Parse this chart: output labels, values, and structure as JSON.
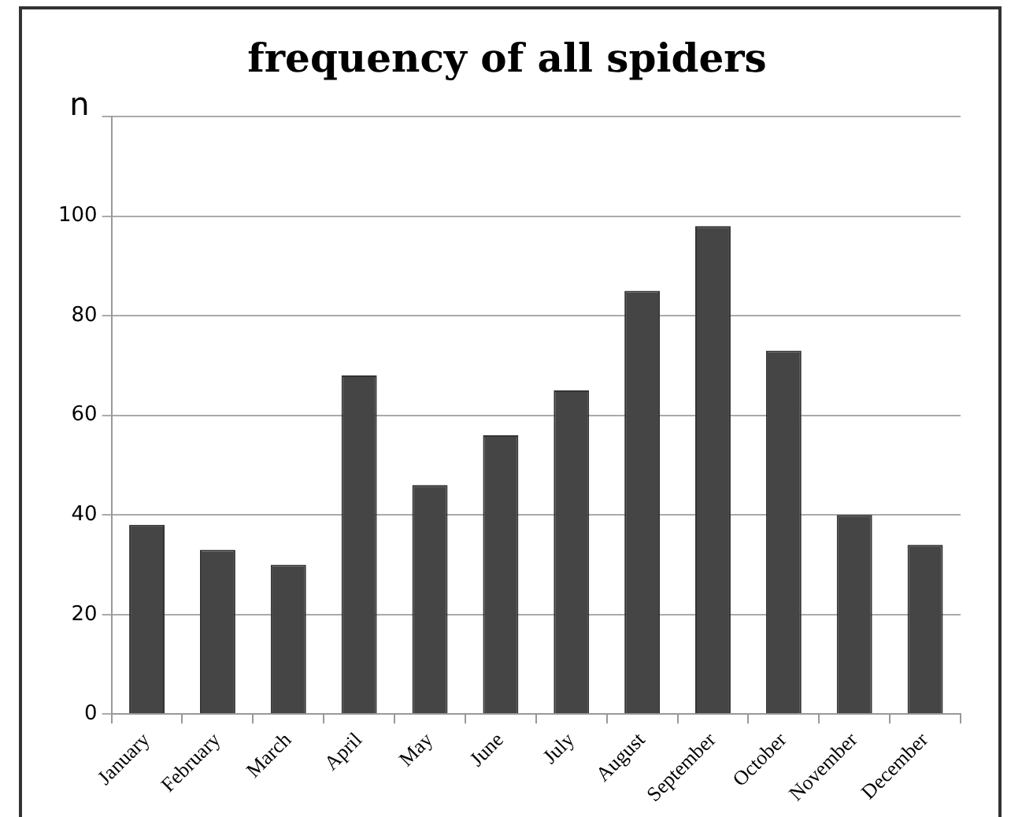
{
  "chart_data": {
    "type": "bar",
    "title": "frequency of all spiders",
    "ylabel": "n",
    "categories": [
      "January",
      "February",
      "March",
      "April",
      "May",
      "June",
      "July",
      "August",
      "September",
      "October",
      "November",
      "December"
    ],
    "values": [
      38,
      33,
      30,
      68,
      46,
      56,
      65,
      85,
      98,
      73,
      40,
      34
    ],
    "color": "#454545",
    "ylim": [
      0,
      120
    ],
    "yticks": [
      0,
      20,
      40,
      60,
      80,
      100,
      {
        "value": 120,
        "label": null
      }
    ],
    "grid": "y"
  }
}
